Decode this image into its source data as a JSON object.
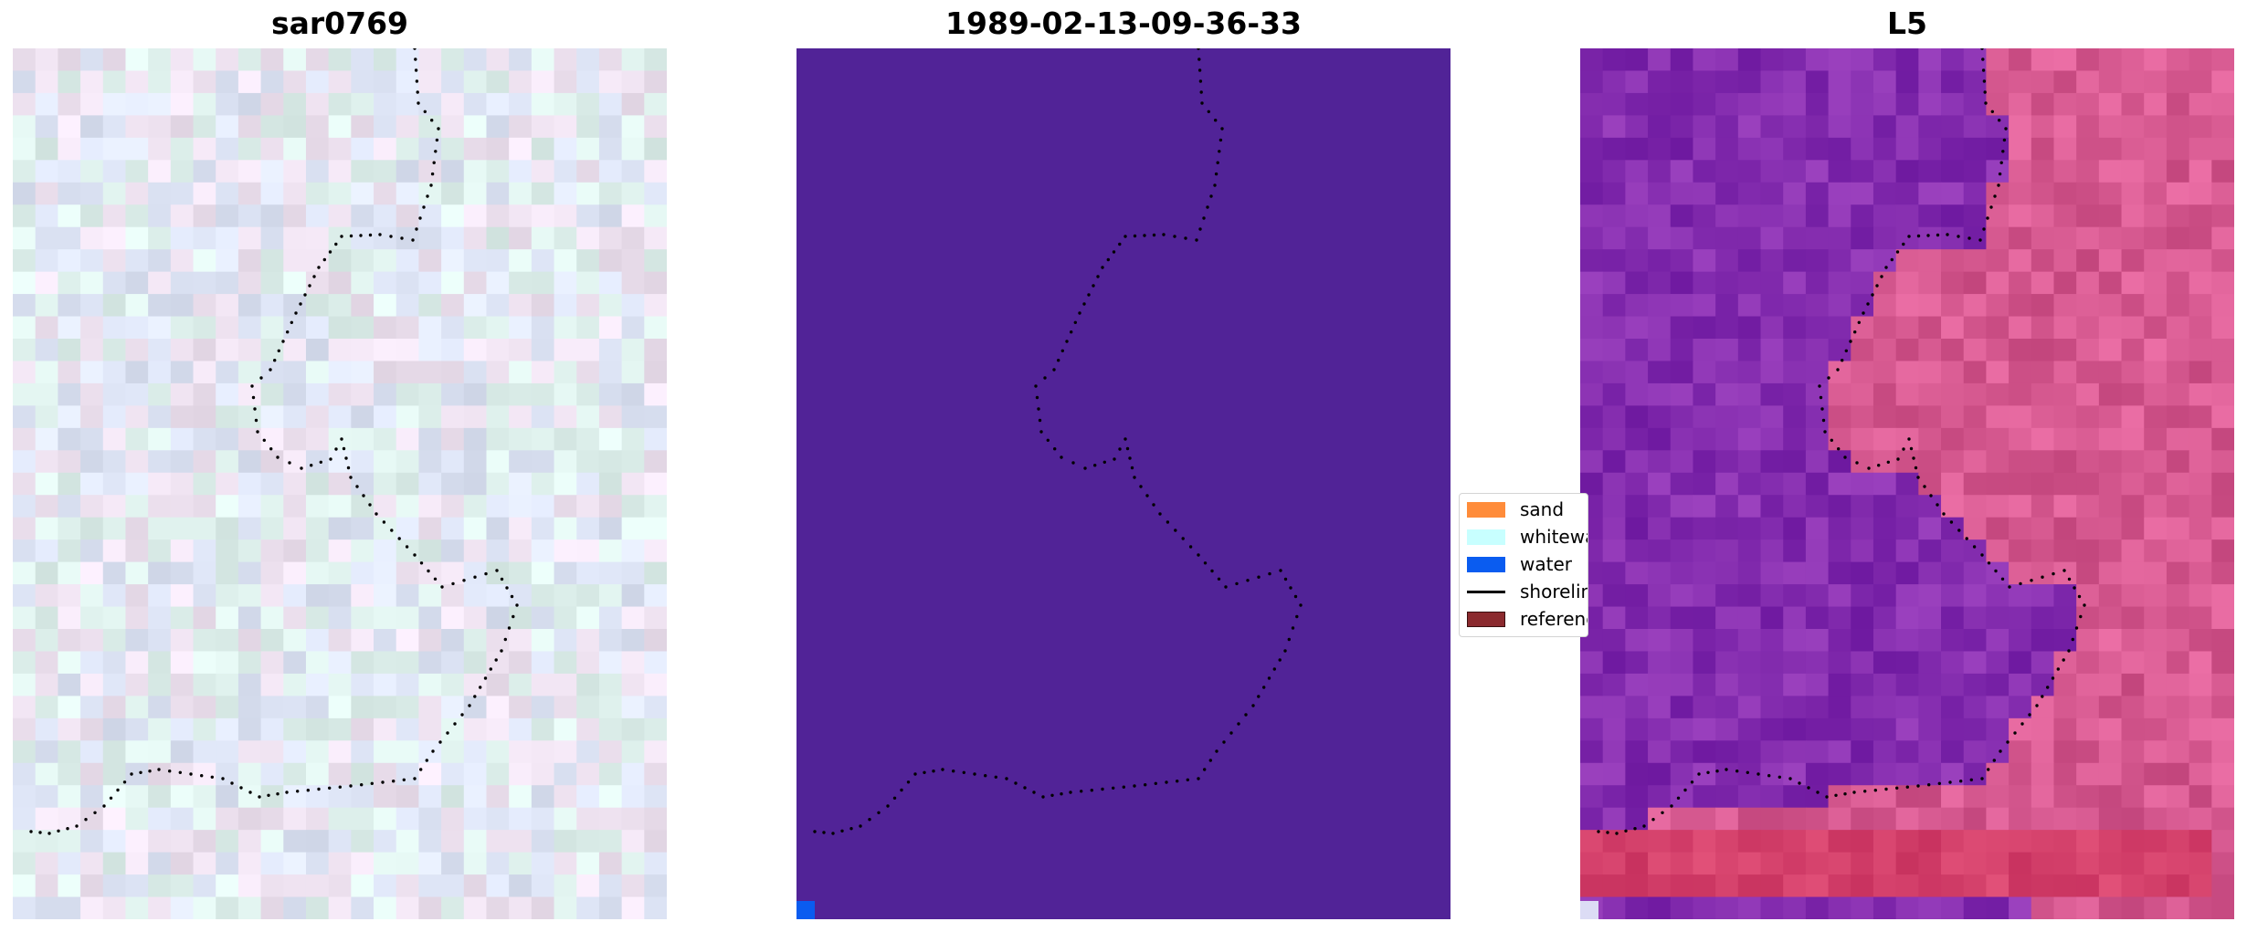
{
  "panels": [
    {
      "title": "sar0769",
      "render": "grid",
      "palette": "sar"
    },
    {
      "title": "1989-02-13-09-36-33",
      "render": "solid",
      "fill": "#512397"
    },
    {
      "title": "L5",
      "render": "grid",
      "palette": "l5"
    }
  ],
  "legend": {
    "items": [
      {
        "label": "sand",
        "color": "#ff8c3a",
        "kind": "patch"
      },
      {
        "label": "whitewater",
        "color": "#c8ffff",
        "kind": "patch"
      },
      {
        "label": "water",
        "color": "#0a5cf0",
        "kind": "patch"
      },
      {
        "label": "shoreline",
        "color": "#000000",
        "kind": "line"
      },
      {
        "label": "reference",
        "color": "#8b2a2e",
        "kind": "patch-outlined"
      }
    ]
  },
  "colors": {
    "shoreline_dots": "#000000",
    "water_pixel": "#0a5cf0",
    "corner_pixel_l5": "#dcdcf5"
  }
}
